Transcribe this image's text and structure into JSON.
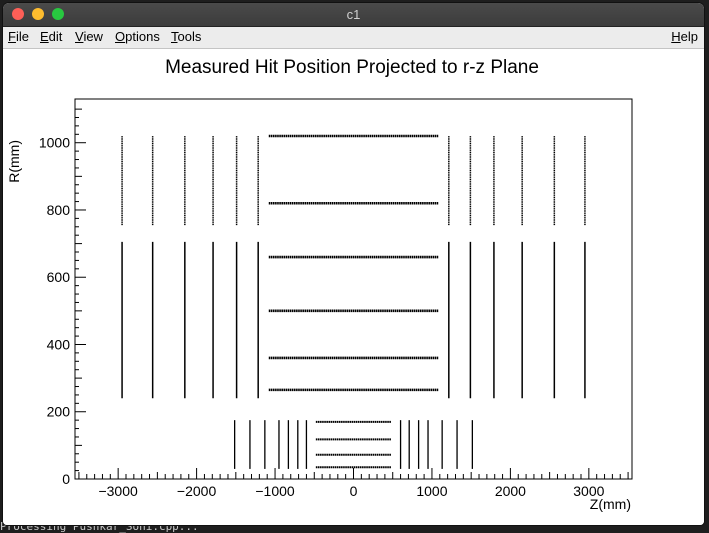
{
  "terminal": {
    "text": "Processing Pushkar_Soni.cpp..."
  },
  "window": {
    "title": "c1"
  },
  "menu": {
    "items": [
      {
        "label": "File",
        "accel": "F",
        "rest": "ile"
      },
      {
        "label": "Edit",
        "accel": "E",
        "rest": "dit"
      },
      {
        "label": "View",
        "accel": "V",
        "rest": "iew"
      },
      {
        "label": "Options",
        "accel": "O",
        "rest": "ptions"
      },
      {
        "label": "Tools",
        "accel": "T",
        "rest": "ools"
      }
    ],
    "help": {
      "label": "Help",
      "accel": "H",
      "rest": "elp"
    }
  },
  "chart_data": {
    "type": "scatter",
    "title": "Measured Hit Position Projected to r-z Plane",
    "xlabel": "Z(mm)",
    "ylabel": "R(mm)",
    "xlim": [
      -3550,
      3550
    ],
    "ylim": [
      0,
      1130
    ],
    "xticks": [
      -3000,
      -2000,
      -1000,
      0,
      1000,
      2000,
      3000
    ],
    "xtick_labels": [
      "−3000",
      "−2000",
      "−1000",
      "0",
      "1000",
      "2000",
      "3000"
    ],
    "yticks": [
      0,
      200,
      400,
      600,
      800,
      1000
    ],
    "ytick_labels": [
      "0",
      "200",
      "400",
      "600",
      "800",
      "1000"
    ],
    "grid": false,
    "color": "#000000",
    "barrel_layers": [
      {
        "r": 1020,
        "z_min": -1080,
        "z_max": 1080
      },
      {
        "r": 820,
        "z_min": -1080,
        "z_max": 1080
      },
      {
        "r": 660,
        "z_min": -1080,
        "z_max": 1080
      },
      {
        "r": 500,
        "z_min": -1080,
        "z_max": 1080
      },
      {
        "r": 360,
        "z_min": -1080,
        "z_max": 1080
      },
      {
        "r": 265,
        "z_min": -1080,
        "z_max": 1080
      },
      {
        "r": 170,
        "z_min": -480,
        "z_max": 480
      },
      {
        "r": 118,
        "z_min": -480,
        "z_max": 480
      },
      {
        "r": 72,
        "z_min": -480,
        "z_max": 480
      },
      {
        "r": 35,
        "z_min": -480,
        "z_max": 480
      }
    ],
    "endcap_disks": [
      {
        "z": 2950,
        "r_min": 240,
        "r_max": 1020
      },
      {
        "z": 2560,
        "r_min": 240,
        "r_max": 1020
      },
      {
        "z": 2150,
        "r_min": 240,
        "r_max": 1020
      },
      {
        "z": 1790,
        "r_min": 240,
        "r_max": 1020
      },
      {
        "z": 1490,
        "r_min": 240,
        "r_max": 1020
      },
      {
        "z": 1215,
        "r_min": 240,
        "r_max": 1020
      },
      {
        "z": 1515,
        "r_min": 30,
        "r_max": 175
      },
      {
        "z": 1320,
        "r_min": 30,
        "r_max": 175
      },
      {
        "z": 1130,
        "r_min": 30,
        "r_max": 175
      },
      {
        "z": 950,
        "r_min": 30,
        "r_max": 175
      },
      {
        "z": 830,
        "r_min": 30,
        "r_max": 175
      },
      {
        "z": 710,
        "r_min": 30,
        "r_max": 175
      },
      {
        "z": 600,
        "r_min": 30,
        "r_max": 175
      }
    ],
    "endcap_gap": [
      705,
      755
    ]
  }
}
